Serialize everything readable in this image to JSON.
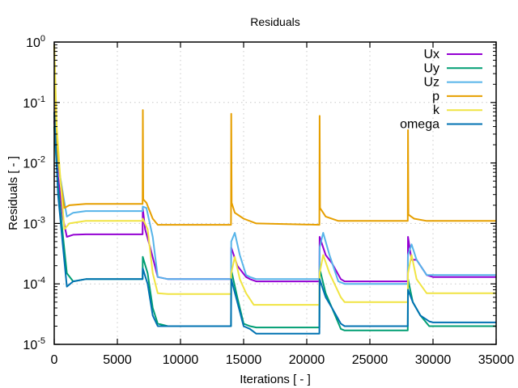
{
  "chart_data": {
    "type": "line",
    "title": "Residuals",
    "xlabel": "Iterations [ - ]",
    "ylabel": "Residuals [ - ]",
    "xlim": [
      0,
      35000
    ],
    "ylim": [
      1e-05,
      1
    ],
    "yscale": "log",
    "grid": true,
    "legend_position": "top-right",
    "x_ticks": [
      "0",
      "5000",
      "10000",
      "15000",
      "20000",
      "25000",
      "30000",
      "35000"
    ],
    "y_ticks": [
      {
        "base": "10",
        "exp": "0"
      },
      {
        "base": "10",
        "exp": "-1"
      },
      {
        "base": "10",
        "exp": "-2"
      },
      {
        "base": "10",
        "exp": "-3"
      },
      {
        "base": "10",
        "exp": "-4"
      },
      {
        "base": "10",
        "exp": "-5"
      }
    ],
    "series": [
      {
        "name": "Ux",
        "color": "#9400d3",
        "points": [
          [
            0,
            0.05
          ],
          [
            300,
            0.006
          ],
          [
            700,
            0.0012
          ],
          [
            1000,
            0.0006
          ],
          [
            1500,
            0.00065
          ],
          [
            2500,
            0.00066
          ],
          [
            7000,
            0.00066
          ],
          [
            7010,
            0.0018
          ],
          [
            7200,
            0.0008
          ],
          [
            7600,
            0.0004
          ],
          [
            8200,
            0.00013
          ],
          [
            9000,
            0.00012
          ],
          [
            14000,
            0.00012
          ],
          [
            14020,
            0.0004
          ],
          [
            14500,
            0.0002
          ],
          [
            15200,
            0.00013
          ],
          [
            15500,
            0.00012
          ],
          [
            16000,
            0.00011
          ],
          [
            21000,
            0.00011
          ],
          [
            21020,
            0.0006
          ],
          [
            21500,
            0.0003
          ],
          [
            22000,
            0.00022
          ],
          [
            22700,
            0.00012
          ],
          [
            23000,
            0.00011
          ],
          [
            28000,
            0.00011
          ],
          [
            28020,
            0.0006
          ],
          [
            28300,
            0.00025
          ],
          [
            28700,
            0.00025
          ],
          [
            29500,
            0.00014
          ],
          [
            30000,
            0.00013
          ],
          [
            35000,
            0.00013
          ]
        ]
      },
      {
        "name": "Uy",
        "color": "#009e73",
        "points": [
          [
            0,
            0.04
          ],
          [
            300,
            0.004
          ],
          [
            700,
            0.0006
          ],
          [
            1000,
            0.00015
          ],
          [
            1500,
            0.00011
          ],
          [
            2500,
            0.00012
          ],
          [
            7000,
            0.00012
          ],
          [
            7010,
            0.00028
          ],
          [
            7400,
            0.00015
          ],
          [
            7800,
            4e-05
          ],
          [
            8200,
            2.2e-05
          ],
          [
            9000,
            2e-05
          ],
          [
            14000,
            2e-05
          ],
          [
            14020,
            0.00017
          ],
          [
            14500,
            6e-05
          ],
          [
            15000,
            2.2e-05
          ],
          [
            15500,
            2e-05
          ],
          [
            16000,
            1.9e-05
          ],
          [
            21000,
            1.9e-05
          ],
          [
            21020,
            0.00018
          ],
          [
            21500,
            7e-05
          ],
          [
            22000,
            4e-05
          ],
          [
            22700,
            1.8e-05
          ],
          [
            23000,
            1.7e-05
          ],
          [
            28000,
            1.7e-05
          ],
          [
            28020,
            0.00012
          ],
          [
            28400,
            5e-05
          ],
          [
            29000,
            3e-05
          ],
          [
            29700,
            2e-05
          ],
          [
            30000,
            2e-05
          ],
          [
            35000,
            2e-05
          ]
        ]
      },
      {
        "name": "Uz",
        "color": "#56b4e9",
        "points": [
          [
            0,
            0.06
          ],
          [
            300,
            0.01
          ],
          [
            700,
            0.003
          ],
          [
            1000,
            0.0013
          ],
          [
            1500,
            0.0015
          ],
          [
            2500,
            0.0016
          ],
          [
            7000,
            0.0016
          ],
          [
            7010,
            0.0019
          ],
          [
            7300,
            0.0018
          ],
          [
            7800,
            0.0006
          ],
          [
            8200,
            0.00013
          ],
          [
            9000,
            0.00012
          ],
          [
            14000,
            0.00012
          ],
          [
            14020,
            0.0005
          ],
          [
            14300,
            0.0007
          ],
          [
            14700,
            0.0003
          ],
          [
            15200,
            0.00014
          ],
          [
            15500,
            0.00013
          ],
          [
            16000,
            0.00012
          ],
          [
            21000,
            0.00012
          ],
          [
            21020,
            0.0004
          ],
          [
            21300,
            0.0007
          ],
          [
            21800,
            0.0003
          ],
          [
            22500,
            0.00011
          ],
          [
            23000,
            0.0001
          ],
          [
            28000,
            0.0001
          ],
          [
            28020,
            0.0003
          ],
          [
            28300,
            0.00045
          ],
          [
            28700,
            0.00025
          ],
          [
            29500,
            0.00014
          ],
          [
            30000,
            0.00014
          ],
          [
            35000,
            0.00014
          ]
        ]
      },
      {
        "name": "p",
        "color": "#e69f00",
        "points": [
          [
            0,
            0.9
          ],
          [
            200,
            0.02
          ],
          [
            500,
            0.005
          ],
          [
            800,
            0.0018
          ],
          [
            1200,
            0.002
          ],
          [
            2500,
            0.0021
          ],
          [
            7000,
            0.0021
          ],
          [
            7020,
            0.075
          ],
          [
            7050,
            0.0025
          ],
          [
            7300,
            0.0022
          ],
          [
            7800,
            0.0012
          ],
          [
            8200,
            0.00095
          ],
          [
            9000,
            0.00095
          ],
          [
            14000,
            0.00095
          ],
          [
            14020,
            0.065
          ],
          [
            14050,
            0.0022
          ],
          [
            14300,
            0.0015
          ],
          [
            15000,
            0.0012
          ],
          [
            16000,
            0.001
          ],
          [
            21000,
            0.00095
          ],
          [
            21020,
            0.06
          ],
          [
            21050,
            0.0018
          ],
          [
            21500,
            0.0013
          ],
          [
            22500,
            0.0011
          ],
          [
            23000,
            0.0011
          ],
          [
            28000,
            0.0011
          ],
          [
            28020,
            0.035
          ],
          [
            28050,
            0.0014
          ],
          [
            28500,
            0.0012
          ],
          [
            29500,
            0.0011
          ],
          [
            35000,
            0.0011
          ]
        ]
      },
      {
        "name": "k",
        "color": "#f0e442",
        "points": [
          [
            0,
            0.9
          ],
          [
            200,
            0.04
          ],
          [
            500,
            0.005
          ],
          [
            800,
            0.0008
          ],
          [
            1200,
            0.001
          ],
          [
            2500,
            0.0011
          ],
          [
            7000,
            0.0011
          ],
          [
            7010,
            0.0012
          ],
          [
            7400,
            0.0008
          ],
          [
            7800,
            0.00015
          ],
          [
            8200,
            7e-05
          ],
          [
            9000,
            6.8e-05
          ],
          [
            14000,
            6.8e-05
          ],
          [
            14020,
            0.00015
          ],
          [
            14300,
            0.00028
          ],
          [
            14700,
            0.00012
          ],
          [
            15200,
            7e-05
          ],
          [
            15800,
            4.5e-05
          ],
          [
            21000,
            4.5e-05
          ],
          [
            21020,
            0.00015
          ],
          [
            21300,
            0.0003
          ],
          [
            21800,
            0.00015
          ],
          [
            22700,
            6e-05
          ],
          [
            23000,
            5e-05
          ],
          [
            28000,
            5e-05
          ],
          [
            28020,
            0.00015
          ],
          [
            28300,
            0.0003
          ],
          [
            28700,
            0.00012
          ],
          [
            29500,
            7e-05
          ],
          [
            30000,
            7e-05
          ],
          [
            35000,
            7e-05
          ]
        ]
      },
      {
        "name": "omega",
        "color": "#0072b2",
        "points": [
          [
            0,
            0.07
          ],
          [
            300,
            0.003
          ],
          [
            700,
            0.0004
          ],
          [
            1000,
            9e-05
          ],
          [
            1500,
            0.00011
          ],
          [
            2500,
            0.00012
          ],
          [
            7000,
            0.00012
          ],
          [
            7010,
            0.00018
          ],
          [
            7400,
            0.0001
          ],
          [
            7800,
            3e-05
          ],
          [
            8200,
            2e-05
          ],
          [
            9000,
            2e-05
          ],
          [
            14000,
            2e-05
          ],
          [
            14020,
            0.00012
          ],
          [
            14500,
            5e-05
          ],
          [
            15000,
            2e-05
          ],
          [
            15500,
            1.8e-05
          ],
          [
            16000,
            1.5e-05
          ],
          [
            21000,
            1.5e-05
          ],
          [
            21020,
            0.00012
          ],
          [
            21500,
            6e-05
          ],
          [
            22000,
            4e-05
          ],
          [
            22700,
            2.2e-05
          ],
          [
            23000,
            2e-05
          ],
          [
            28000,
            2e-05
          ],
          [
            28020,
            8e-05
          ],
          [
            28400,
            5e-05
          ],
          [
            29000,
            3e-05
          ],
          [
            29700,
            2.4e-05
          ],
          [
            30000,
            2.3e-05
          ],
          [
            35000,
            2.3e-05
          ]
        ]
      }
    ]
  }
}
